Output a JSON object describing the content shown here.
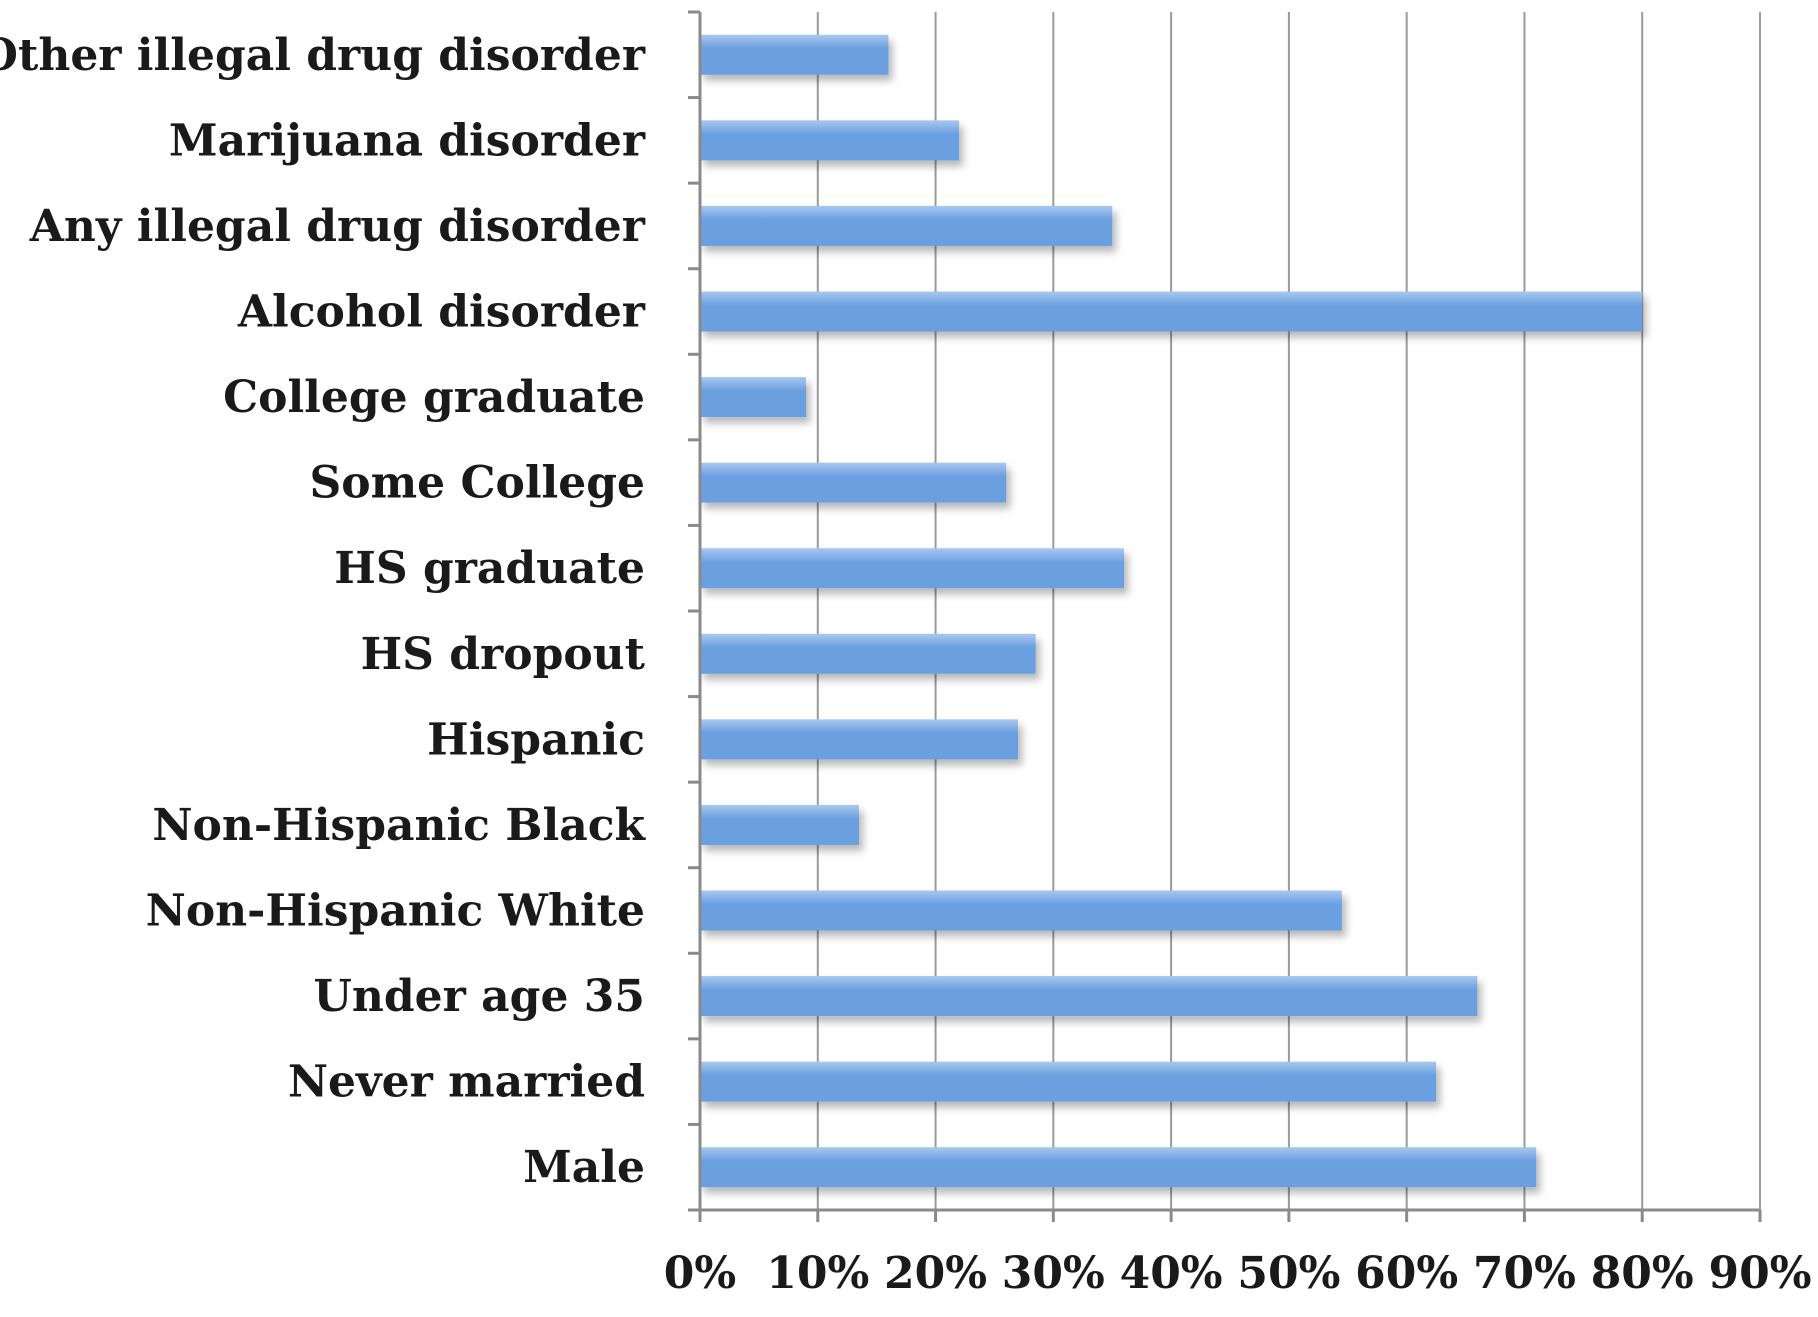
{
  "chart_data": {
    "type": "bar",
    "orientation": "horizontal",
    "categories": [
      "Other illegal drug disorder",
      "Marijuana disorder",
      "Any illegal drug disorder",
      "Alcohol disorder",
      "College graduate",
      "Some College",
      "HS graduate",
      "HS dropout",
      "Hispanic",
      "Non-Hispanic Black",
      "Non-Hispanic White",
      "Under age 35",
      "Never married",
      "Male"
    ],
    "values": [
      16,
      22,
      35,
      80,
      9,
      26,
      36,
      28.5,
      27,
      13.5,
      54.5,
      66,
      62.5,
      71
    ],
    "xlim": [
      0,
      90
    ],
    "xticks": [
      "0%",
      "10%",
      "20%",
      "30%",
      "40%",
      "50%",
      "60%",
      "70%",
      "80%",
      "90%"
    ],
    "unit": "%",
    "title": "",
    "xlabel": "",
    "ylabel": "",
    "grid": "vertical",
    "legend": "none",
    "bar_color": "#6a9fe0",
    "bar_color_light": "#a9c8f0"
  }
}
